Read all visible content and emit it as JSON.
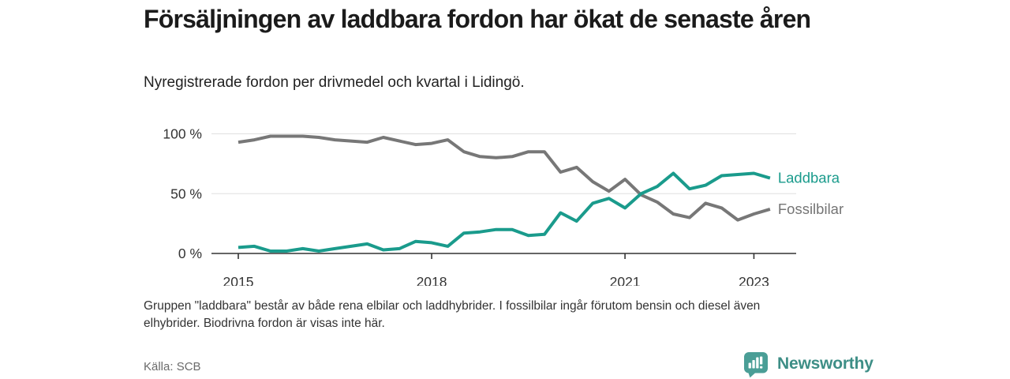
{
  "header": {
    "title": "Försäljningen av laddbara fordon har ökat de senaste åren",
    "subtitle": "Nyregistrerade fordon per drivmedel och kvartal i Lidingö."
  },
  "chart_data": {
    "type": "line",
    "title": "Nyregistrerade fordon per drivmedel och kvartal i Lidingö",
    "unit": "%",
    "ylim": [
      0,
      100
    ],
    "grid": "horizontal",
    "legend_position": "line-end-labels-right",
    "x": [
      "2015 Q1",
      "2015 Q2",
      "2015 Q3",
      "2015 Q4",
      "2016 Q1",
      "2016 Q2",
      "2016 Q3",
      "2016 Q4",
      "2017 Q1",
      "2017 Q2",
      "2017 Q3",
      "2017 Q4",
      "2018 Q1",
      "2018 Q2",
      "2018 Q3",
      "2018 Q4",
      "2019 Q1",
      "2019 Q2",
      "2019 Q3",
      "2019 Q4",
      "2020 Q1",
      "2020 Q2",
      "2020 Q3",
      "2020 Q4",
      "2021 Q1",
      "2021 Q2",
      "2021 Q3",
      "2021 Q4",
      "2022 Q1",
      "2022 Q2",
      "2022 Q3",
      "2022 Q4",
      "2023 Q1",
      "2023 Q2"
    ],
    "x_tick_labels": [
      "2015",
      "2018",
      "2021",
      "2023"
    ],
    "y_ticks": [
      {
        "label": "100 %",
        "value": 100
      },
      {
        "label": "50 %",
        "value": 50
      },
      {
        "label": "0 %",
        "value": 0
      }
    ],
    "series": [
      {
        "name": "Laddbara",
        "color": "#1A9B8C",
        "values": [
          5,
          6,
          2,
          2,
          4,
          2,
          4,
          6,
          8,
          3,
          4,
          10,
          9,
          6,
          17,
          18,
          20,
          20,
          15,
          16,
          34,
          27,
          42,
          46,
          38,
          50,
          56,
          67,
          54,
          57,
          65,
          66,
          67,
          63
        ]
      },
      {
        "name": "Fossilbilar",
        "color": "#777777",
        "values": [
          93,
          95,
          98,
          98,
          98,
          97,
          95,
          94,
          93,
          97,
          94,
          91,
          92,
          95,
          85,
          81,
          80,
          81,
          85,
          85,
          68,
          72,
          60,
          52,
          62,
          49,
          43,
          33,
          30,
          42,
          38,
          28,
          33,
          37
        ]
      }
    ]
  },
  "footnote": "Gruppen \"laddbara\" består av både rena elbilar och laddhybrider. I fossilbilar ingår förutom bensin och diesel även elhybrider. Biodrivna fordon är visas inte här.",
  "source": "Källa: SCB",
  "branding": {
    "name": "Newsworthy",
    "icon": "bar-chart-bubble-icon",
    "icon_color": "#4A9E96",
    "text_color": "#3D8E86"
  }
}
